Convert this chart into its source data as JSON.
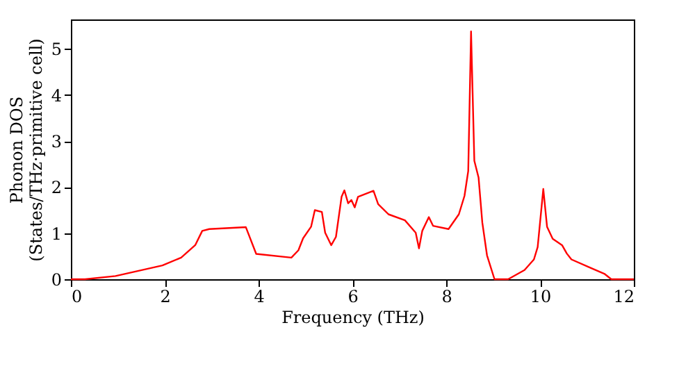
{
  "chart_data": {
    "type": "line",
    "xlabel": "Frequency (THz)",
    "ylabel": "Phonon DOS\n(States/THz·primitive cell)",
    "xlim": [
      0,
      12
    ],
    "ylim": [
      0,
      5.64
    ],
    "xticks": [
      0,
      2,
      4,
      6,
      8,
      10,
      12
    ],
    "yticks": [
      0,
      1,
      2,
      3,
      4,
      5
    ],
    "grid": false,
    "series": [
      {
        "color": "#ff0000",
        "x": [
          0,
          0.3,
          0.95,
          1.95,
          2.35,
          2.65,
          2.8,
          2.95,
          3.73,
          3.95,
          4.7,
          4.85,
          4.95,
          5.12,
          5.2,
          5.35,
          5.42,
          5.55,
          5.65,
          5.77,
          5.83,
          5.91,
          5.98,
          6.05,
          6.12,
          6.45,
          6.55,
          6.77,
          7.12,
          7.35,
          7.42,
          7.49,
          7.63,
          7.72,
          8.05,
          8.27,
          8.39,
          8.47,
          8.53,
          8.6,
          8.69,
          8.77,
          8.87,
          9.03,
          9.32,
          9.67,
          9.87,
          9.95,
          10.07,
          10.15,
          10.27,
          10.47,
          10.57,
          10.67,
          11.07,
          11.37,
          11.52,
          12
        ],
        "values": [
          0,
          0,
          0.07,
          0.3,
          0.47,
          0.74,
          1.05,
          1.09,
          1.13,
          0.55,
          0.47,
          0.63,
          0.89,
          1.14,
          1.5,
          1.46,
          1.01,
          0.74,
          0.92,
          1.79,
          1.93,
          1.65,
          1.72,
          1.56,
          1.79,
          1.92,
          1.63,
          1.41,
          1.28,
          1.01,
          0.67,
          1.05,
          1.35,
          1.16,
          1.09,
          1.41,
          1.81,
          2.35,
          5.38,
          2.57,
          2.21,
          1.23,
          0.52,
          0,
          0,
          0.2,
          0.43,
          0.7,
          1.96,
          1.14,
          0.88,
          0.74,
          0.56,
          0.43,
          0.25,
          0.12,
          0,
          0
        ]
      }
    ]
  }
}
